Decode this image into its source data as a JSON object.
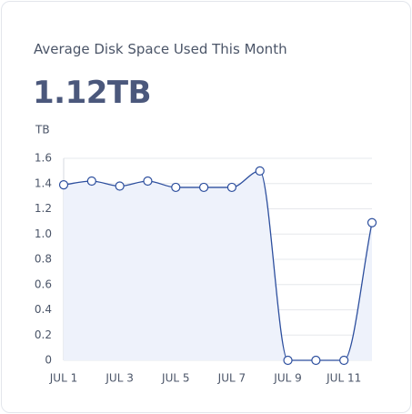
{
  "header": {
    "title": "Average Disk Space Used This Month",
    "value": "1.12TB"
  },
  "chart_data": {
    "type": "line",
    "y_label": "TB",
    "categories": [
      "JUL 1",
      null,
      "JUL 3",
      null,
      "JUL 5",
      null,
      "JUL 7",
      null,
      "JUL 9",
      null,
      "JUL 11",
      null
    ],
    "series": [
      {
        "name": "Disk Space",
        "color": "#2d4f9e",
        "values": [
          1.39,
          1.42,
          1.38,
          1.42,
          1.37,
          1.37,
          1.37,
          1.5,
          0,
          0,
          0,
          1.09
        ]
      }
    ],
    "ylim": [
      0,
      1.6
    ],
    "yticks": [
      0,
      0.2,
      0.4,
      0.6,
      0.8,
      {
        "value": 1,
        "label": "1.0"
      },
      1.2,
      1.4,
      1.6
    ],
    "grid": true
  }
}
